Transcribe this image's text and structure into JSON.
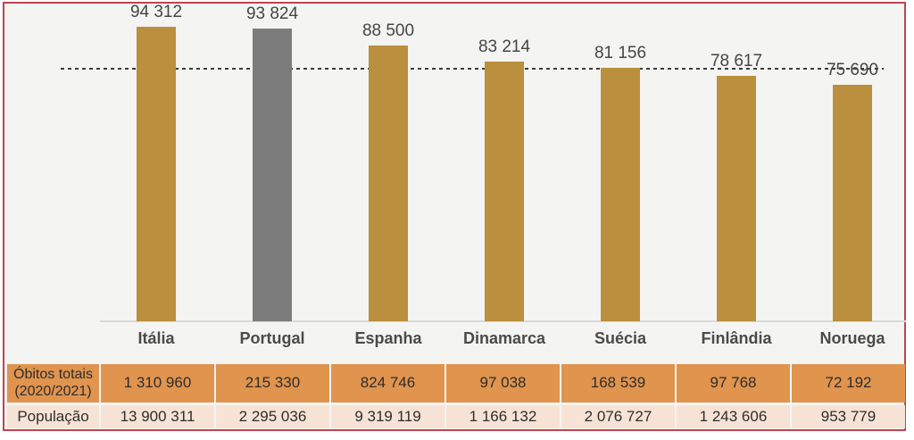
{
  "frame": {
    "border_color": "#bf4350",
    "background": "#f4f4f2"
  },
  "chart_data": {
    "type": "bar",
    "title": "",
    "xlabel": "",
    "ylabel": "",
    "categories": [
      "Itália",
      "Portugal",
      "Espanha",
      "Dinamarca",
      "Suécia",
      "Finlândia",
      "Noruega"
    ],
    "values": [
      94312,
      93824,
      88500,
      83214,
      81156,
      78617,
      75690
    ],
    "value_labels": [
      "94 312",
      "93 824",
      "88 500",
      "83 214",
      "81 156",
      "78 617",
      "75 690"
    ],
    "bar_color": "#ba8f3d",
    "highlight_category": "Portugal",
    "highlight_color": "#7c7c7c",
    "ylim": [
      0,
      103000
    ],
    "grid": false,
    "legend": false,
    "reference_line": {
      "style": "dashed",
      "color": "#3a3a3a",
      "approx_value": 81100
    }
  },
  "table": {
    "rows": [
      {
        "header_lines": [
          "Óbitos totais",
          "(2020/2021)"
        ],
        "bg": "#e0944e",
        "values": [
          "1 310 960",
          "215 330",
          "824 746",
          "97 038",
          "168 539",
          "97 768",
          "72 192"
        ]
      },
      {
        "header_lines": [
          "População"
        ],
        "bg": "#f7e3d6",
        "values": [
          "13 900 311",
          "2 295 036",
          "9 319 119",
          "1 166 132",
          "2 076 727",
          "1 243 606",
          "953 779"
        ]
      }
    ]
  }
}
